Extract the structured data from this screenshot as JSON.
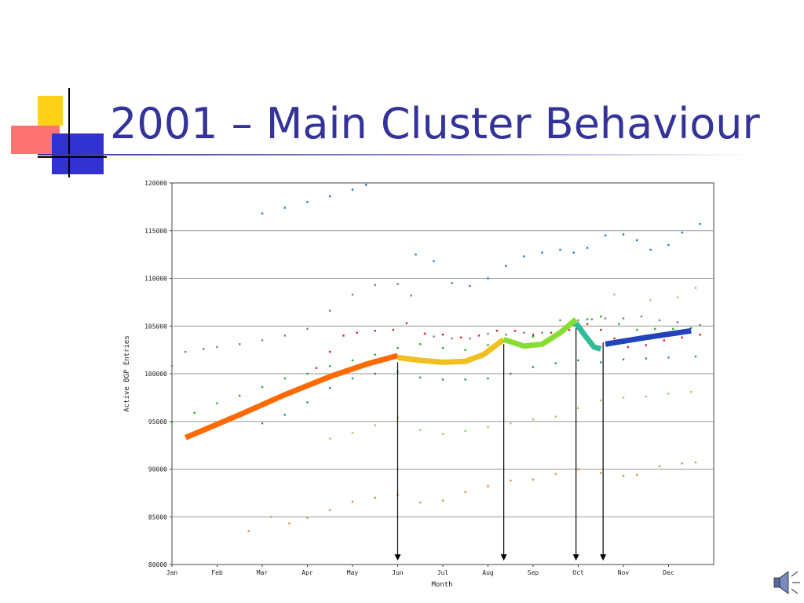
{
  "slide": {
    "title": "2001 – Main Cluster Behaviour"
  },
  "colors": {
    "title": "#333399",
    "deco_yellow": "#ffd21a",
    "deco_red": "#ff5a5a",
    "deco_blue": "#3232d2",
    "deco_black": "#000000"
  },
  "chart_data": {
    "type": "scatter",
    "title": "",
    "xlabel": "Month",
    "ylabel": "Active BGP Entries",
    "x_categories": [
      "Jan",
      "Feb",
      "Mar",
      "Apr",
      "May",
      "Jun",
      "Jul",
      "Aug",
      "Sep",
      "Oct",
      "Nov",
      "Dec"
    ],
    "ylim": [
      80000,
      120000
    ],
    "y_ticks": [
      "120000",
      "115000",
      "110000",
      "105000",
      "100000",
      "95000",
      "90000",
      "85000",
      "80000"
    ],
    "grid": "horizontal",
    "series": [
      {
        "color": "#1a78d2",
        "points": [
          [
            2.0,
            116800
          ],
          [
            2.5,
            117400
          ],
          [
            3.0,
            118000
          ],
          [
            3.5,
            118600
          ],
          [
            4.0,
            119300
          ],
          [
            4.3,
            119800
          ],
          [
            5.4,
            112500
          ],
          [
            5.8,
            111800
          ],
          [
            6.2,
            109500
          ],
          [
            6.6,
            109200
          ],
          [
            7.0,
            110000
          ],
          [
            7.4,
            111300
          ],
          [
            7.8,
            112300
          ],
          [
            8.2,
            112700
          ],
          [
            8.6,
            113000
          ],
          [
            8.9,
            112700
          ],
          [
            9.2,
            113200
          ],
          [
            9.6,
            114500
          ],
          [
            10.0,
            114600
          ],
          [
            10.3,
            114000
          ],
          [
            10.6,
            113000
          ],
          [
            11.0,
            113500
          ],
          [
            11.3,
            114800
          ],
          [
            11.7,
            115700
          ]
        ]
      },
      {
        "color": "#7f7f7f",
        "points": [
          [
            0.0,
            100800
          ],
          [
            0.3,
            102300
          ],
          [
            0.7,
            102600
          ],
          [
            1.0,
            102800
          ],
          [
            1.5,
            103100
          ],
          [
            2.0,
            103500
          ],
          [
            2.5,
            104000
          ],
          [
            3.0,
            104700
          ],
          [
            3.5,
            106600
          ],
          [
            4.0,
            108300
          ],
          [
            4.5,
            109300
          ],
          [
            5.0,
            109400
          ],
          [
            5.3,
            108200
          ],
          [
            5.8,
            103900
          ],
          [
            6.2,
            103700
          ],
          [
            6.6,
            103700
          ],
          [
            7.0,
            104200
          ],
          [
            7.4,
            104100
          ],
          [
            7.8,
            104300
          ],
          [
            8.2,
            104300
          ],
          [
            8.6,
            105600
          ],
          [
            9.0,
            105600
          ],
          [
            9.3,
            105700
          ],
          [
            9.6,
            105800
          ],
          [
            10.0,
            105800
          ],
          [
            10.4,
            106000
          ],
          [
            10.8,
            105600
          ],
          [
            11.2,
            105400
          ],
          [
            11.7,
            105100
          ]
        ]
      },
      {
        "color": "#e02020",
        "points": [
          [
            3.2,
            100600
          ],
          [
            3.5,
            102300
          ],
          [
            3.8,
            104000
          ],
          [
            4.1,
            104300
          ],
          [
            4.5,
            104500
          ],
          [
            4.9,
            104600
          ],
          [
            5.2,
            105300
          ],
          [
            5.6,
            104200
          ],
          [
            6.0,
            104100
          ],
          [
            6.4,
            103800
          ],
          [
            6.8,
            104000
          ],
          [
            7.2,
            104500
          ],
          [
            7.6,
            104500
          ],
          [
            8.0,
            104100
          ],
          [
            8.4,
            104300
          ],
          [
            8.8,
            104600
          ],
          [
            9.2,
            105200
          ],
          [
            9.5,
            104600
          ],
          [
            9.8,
            103700
          ],
          [
            10.1,
            102800
          ],
          [
            10.5,
            103000
          ],
          [
            10.9,
            103500
          ],
          [
            11.3,
            103800
          ],
          [
            11.7,
            104100
          ]
        ]
      },
      {
        "color": "#22b422",
        "points": [
          [
            0.0,
            94900
          ],
          [
            0.5,
            95900
          ],
          [
            1.0,
            96900
          ],
          [
            1.5,
            97700
          ],
          [
            2.0,
            98600
          ],
          [
            2.5,
            99500
          ],
          [
            3.0,
            100000
          ],
          [
            3.5,
            100800
          ],
          [
            4.0,
            101400
          ],
          [
            4.5,
            102000
          ],
          [
            5.0,
            102700
          ],
          [
            5.5,
            103100
          ],
          [
            6.0,
            102700
          ],
          [
            6.5,
            102500
          ],
          [
            7.0,
            103000
          ],
          [
            7.5,
            103400
          ],
          [
            8.0,
            103900
          ],
          [
            8.5,
            104200
          ],
          [
            8.9,
            105100
          ],
          [
            9.2,
            105700
          ],
          [
            9.5,
            106000
          ],
          [
            9.9,
            105200
          ],
          [
            10.3,
            104600
          ],
          [
            10.7,
            104700
          ],
          [
            11.1,
            104700
          ],
          [
            11.5,
            104800
          ]
        ]
      },
      {
        "color": "#2a8c8c",
        "points": [
          [
            2.0,
            94800
          ],
          [
            2.5,
            95700
          ],
          [
            3.0,
            97000
          ],
          [
            3.5,
            98500
          ],
          [
            4.0,
            99500
          ],
          [
            4.5,
            100000
          ],
          [
            5.0,
            100200
          ],
          [
            5.5,
            99600
          ],
          [
            6.0,
            99400
          ],
          [
            6.5,
            99400
          ],
          [
            7.0,
            99500
          ],
          [
            7.5,
            100000
          ],
          [
            8.0,
            100700
          ],
          [
            8.5,
            101100
          ],
          [
            9.0,
            101400
          ],
          [
            9.5,
            101200
          ],
          [
            10.0,
            101500
          ],
          [
            10.5,
            101600
          ],
          [
            11.0,
            101700
          ],
          [
            11.6,
            101800
          ]
        ]
      },
      {
        "color": "#9ad060",
        "points": [
          [
            3.5,
            93200
          ],
          [
            4.0,
            93800
          ],
          [
            4.5,
            94600
          ],
          [
            5.0,
            95400
          ],
          [
            5.5,
            94100
          ],
          [
            6.0,
            93700
          ],
          [
            6.5,
            94000
          ],
          [
            7.0,
            94400
          ],
          [
            7.5,
            94800
          ],
          [
            8.0,
            95200
          ],
          [
            8.5,
            95500
          ],
          [
            9.0,
            96400
          ],
          [
            9.5,
            97200
          ],
          [
            10.0,
            97500
          ],
          [
            10.5,
            97600
          ],
          [
            11.0,
            97900
          ],
          [
            11.5,
            98100
          ],
          [
            9.8,
            108300
          ],
          [
            10.6,
            107700
          ],
          [
            11.2,
            108000
          ],
          [
            11.6,
            109000
          ]
        ]
      },
      {
        "color": "#e09040",
        "points": [
          [
            1.7,
            83500
          ],
          [
            2.2,
            85000
          ],
          [
            2.6,
            84300
          ],
          [
            3.0,
            84900
          ],
          [
            3.5,
            85700
          ],
          [
            4.0,
            86600
          ],
          [
            4.5,
            87000
          ],
          [
            5.0,
            87300
          ],
          [
            5.5,
            86500
          ],
          [
            6.0,
            86700
          ],
          [
            6.5,
            87600
          ],
          [
            7.0,
            88200
          ],
          [
            7.5,
            88800
          ],
          [
            8.0,
            88900
          ],
          [
            8.5,
            89500
          ],
          [
            9.0,
            90000
          ],
          [
            9.5,
            89600
          ],
          [
            10.0,
            89300
          ],
          [
            10.3,
            89400
          ],
          [
            10.8,
            90300
          ],
          [
            11.3,
            90600
          ],
          [
            11.6,
            90700
          ]
        ]
      }
    ],
    "overlay_trend_segments": [
      {
        "color": "#ff6a00",
        "points": [
          [
            0.3,
            93300
          ],
          [
            1.5,
            95700
          ],
          [
            2.5,
            97800
          ],
          [
            3.5,
            99700
          ],
          [
            4.3,
            101000
          ],
          [
            5.0,
            101900
          ]
        ]
      },
      {
        "color": "#f0c020",
        "points": [
          [
            5.0,
            101700
          ],
          [
            5.5,
            101400
          ],
          [
            6.0,
            101200
          ],
          [
            6.5,
            101300
          ],
          [
            6.9,
            102000
          ],
          [
            7.35,
            103600
          ]
        ]
      },
      {
        "color": "#88dd33",
        "points": [
          [
            7.35,
            103600
          ],
          [
            7.8,
            102900
          ],
          [
            8.2,
            103100
          ],
          [
            8.6,
            104300
          ],
          [
            8.95,
            105700
          ]
        ]
      },
      {
        "color": "#33bb99",
        "points": [
          [
            8.95,
            105300
          ],
          [
            9.15,
            104000
          ],
          [
            9.35,
            102800
          ],
          [
            9.5,
            102600
          ]
        ]
      },
      {
        "color": "#2244bb",
        "points": [
          [
            9.6,
            103100
          ],
          [
            10.5,
            103800
          ],
          [
            11.5,
            104500
          ]
        ]
      }
    ],
    "event_markers_x": [
      5.0,
      7.35,
      8.95,
      9.55
    ]
  }
}
